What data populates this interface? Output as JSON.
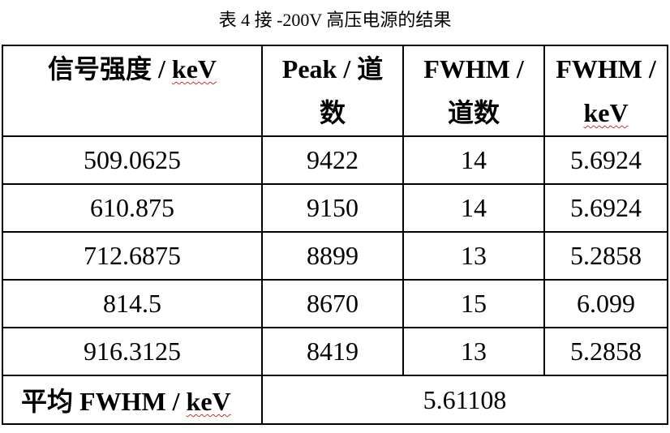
{
  "caption": "表 4  接  -200V  高压电源的结果",
  "table": {
    "headers": [
      {
        "text": "信号强度  / ",
        "unit": "keV"
      },
      {
        "line1": "Peak /  道",
        "line2": "数"
      },
      {
        "line1": "FWHM /",
        "line2": "道数"
      },
      {
        "line1": "FWHM /",
        "unit": "keV"
      }
    ],
    "rows": [
      [
        "509.0625",
        "9422",
        "14",
        "5.6924"
      ],
      [
        "610.875",
        "9150",
        "14",
        "5.6924"
      ],
      [
        "712.6875",
        "8899",
        "13",
        "5.2858"
      ],
      [
        "814.5",
        "8670",
        "15",
        "6.099"
      ],
      [
        "916.3125",
        "8419",
        "13",
        "5.2858"
      ]
    ],
    "average": {
      "label": "平均  FWHM / ",
      "unit": "keV",
      "value": "5.61108"
    }
  }
}
